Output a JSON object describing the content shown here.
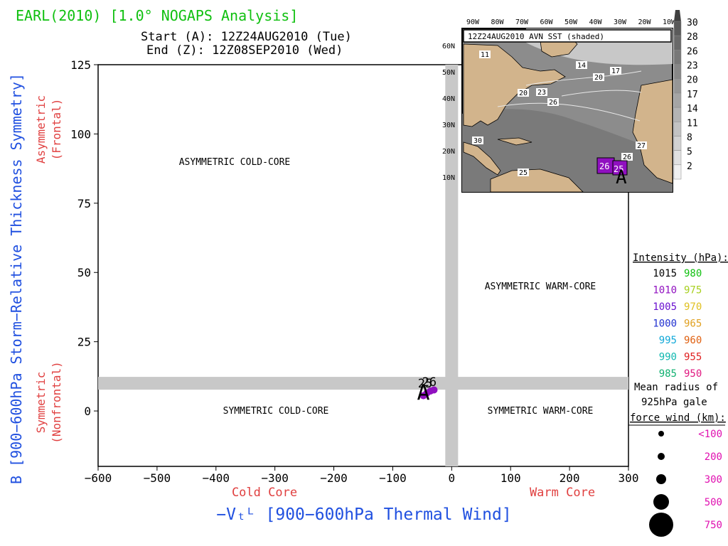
{
  "header": {
    "title": "EARL(2010) [1.0° NOGAPS Analysis]",
    "start": "Start (A): 12Z24AUG2010 (Tue)",
    "end": "End (Z): 12Z08SEP2010 (Wed)"
  },
  "chart_data": {
    "type": "scatter",
    "xlabel": "−Vₜᴸ [900−600hPa Thermal Wind]",
    "ylabel": "B [900−600hPa Storm−Relative Thickness Symmetry]",
    "xlim": [
      -600,
      300
    ],
    "ylim": [
      -20,
      125
    ],
    "xticks": [
      -600,
      -500,
      -400,
      -300,
      -200,
      -100,
      0,
      100,
      200,
      300
    ],
    "yticks": [
      0,
      25,
      50,
      75,
      100,
      125
    ],
    "x_sub_labels": {
      "left": "Cold Core",
      "right": "Warm Core"
    },
    "y_sub_labels": {
      "upper": [
        "Asymmetric",
        "(Frontal)"
      ],
      "lower": [
        "Symmetric",
        "(Nonfrontal)"
      ]
    },
    "quadrant_labels": {
      "upper_left": "ASYMMETRIC COLD-CORE",
      "upper_right": "ASYMMETRIC WARM-CORE",
      "lower_left": "SYMMETRIC COLD-CORE",
      "lower_right": "SYMMETRIC WARM-CORE"
    },
    "reference_bands": {
      "x_center": 0,
      "y_center": 10
    },
    "track": [
      {
        "x": -48,
        "y": 5.5,
        "color": "#9010c0"
      },
      {
        "x": -42,
        "y": 6.5,
        "color": "#9010c0"
      },
      {
        "x": -36,
        "y": 7.2,
        "color": "#9010c0"
      },
      {
        "x": -30,
        "y": 7.6,
        "color": "#9010c0"
      }
    ],
    "markers": [
      {
        "label": "A",
        "x": -48,
        "y": 4
      },
      {
        "label": "26",
        "x": -38,
        "y": 9
      },
      {
        "label": "25",
        "x": -45,
        "y": 8.5
      }
    ]
  },
  "legend": {
    "intensity_title": "Intensity (hPa):",
    "intensity_rows": [
      {
        "left": "1015",
        "left_color": "#000000",
        "right": "980",
        "right_color": "#10c010"
      },
      {
        "left": "1010",
        "left_color": "#9010c0",
        "right": "975",
        "right_color": "#a8d020"
      },
      {
        "left": "1005",
        "left_color": "#6a10d0",
        "right": "970",
        "right_color": "#e0c020"
      },
      {
        "left": "1000",
        "left_color": "#2030d0",
        "right": "965",
        "right_color": "#e0a020"
      },
      {
        "left": "995",
        "left_color": "#10a8d8",
        "right": "960",
        "right_color": "#e06010"
      },
      {
        "left": "990",
        "left_color": "#10b8b0",
        "right": "955",
        "right_color": "#e02020"
      },
      {
        "left": "985",
        "left_color": "#10b070",
        "right": "950",
        "right_color": "#e01880"
      }
    ],
    "radius_title": [
      "Mean radius of",
      "925hPa gale",
      "force wind (km):"
    ],
    "radius_rows": [
      "<100",
      "200",
      "300",
      "500",
      "750"
    ],
    "radius_color": "#e010b0"
  },
  "inset": {
    "title": "12Z24AUG2010 AVN SST (shaded)",
    "lon_labels": [
      "90W",
      "80W",
      "70W",
      "60W",
      "50W",
      "40W",
      "30W",
      "20W",
      "10W"
    ],
    "lat_labels": [
      "60N",
      "50N",
      "40N",
      "30N",
      "20N",
      "10N"
    ],
    "contour_labels": [
      "11",
      "14",
      "20",
      "17",
      "20",
      "23",
      "26",
      "30",
      "27",
      "26",
      "25"
    ],
    "colorbar_labels": [
      "30",
      "28",
      "26",
      "23",
      "20",
      "17",
      "14",
      "11",
      "8",
      "5",
      "2"
    ],
    "storm_labels": [
      "26",
      "25"
    ],
    "storm_marker": "A"
  }
}
